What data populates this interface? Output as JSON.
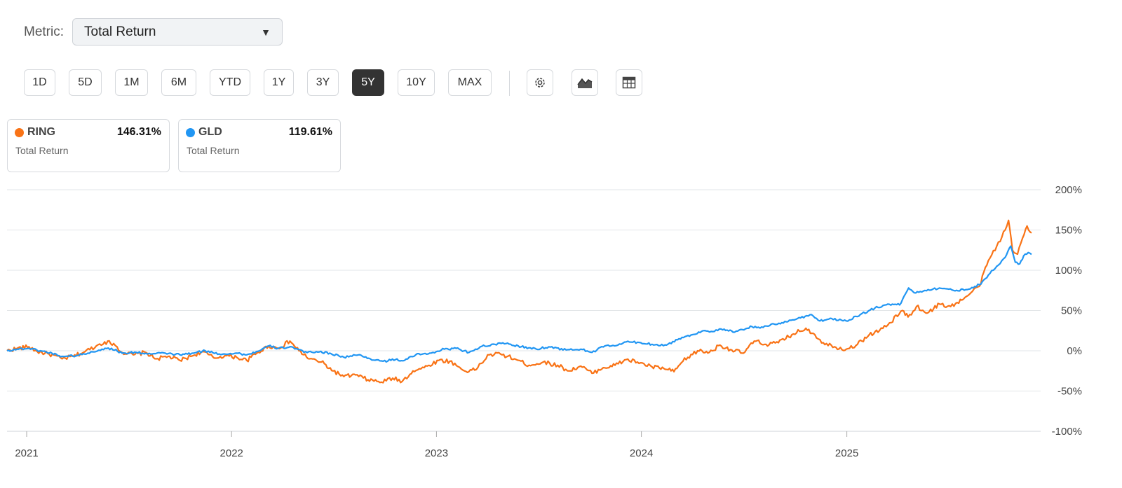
{
  "controls": {
    "metric_label": "Metric:",
    "metric_value": "Total Return",
    "ranges": [
      "1D",
      "5D",
      "1M",
      "6M",
      "YTD",
      "1Y",
      "3Y",
      "5Y",
      "10Y",
      "MAX"
    ],
    "active_range": "5Y",
    "icons": [
      "gear-icon",
      "area-chart-icon",
      "table-icon"
    ]
  },
  "legend": [
    {
      "ticker": "RING",
      "value": "146.31%",
      "metric": "Total Return",
      "color": "#f97316"
    },
    {
      "ticker": "GLD",
      "value": "119.61%",
      "metric": "Total Return",
      "color": "#2196f3"
    }
  ],
  "chart_data": {
    "type": "line",
    "title": "",
    "xlabel": "",
    "ylabel": "",
    "x_ticks": [
      "2021",
      "2022",
      "2023",
      "2024",
      "2025"
    ],
    "y_ticks": [
      "200%",
      "150%",
      "100%",
      "50%",
      "0%",
      "-50%",
      "-100%"
    ],
    "ylim": [
      -100,
      200
    ],
    "xlim": [
      "2020-11-27",
      "2025-11-26"
    ],
    "grid": true,
    "series": [
      {
        "name": "RING",
        "color": "#f97316",
        "points": [
          [
            "2020-11-27",
            0
          ],
          [
            "2020-12-15",
            3
          ],
          [
            "2021-01-05",
            5
          ],
          [
            "2021-01-20",
            -1
          ],
          [
            "2021-02-10",
            -4
          ],
          [
            "2021-03-05",
            -10
          ],
          [
            "2021-03-25",
            -7
          ],
          [
            "2021-04-15",
            -1
          ],
          [
            "2021-05-05",
            6
          ],
          [
            "2021-05-20",
            11
          ],
          [
            "2021-06-05",
            9
          ],
          [
            "2021-06-20",
            -2
          ],
          [
            "2021-07-10",
            -5
          ],
          [
            "2021-08-01",
            -2
          ],
          [
            "2021-08-20",
            -10
          ],
          [
            "2021-09-10",
            -7
          ],
          [
            "2021-10-01",
            -12
          ],
          [
            "2021-10-20",
            -7
          ],
          [
            "2021-11-10",
            -1
          ],
          [
            "2021-12-01",
            -9
          ],
          [
            "2021-12-20",
            -6
          ],
          [
            "2022-01-10",
            -8
          ],
          [
            "2022-01-28",
            -12
          ],
          [
            "2022-02-15",
            -3
          ],
          [
            "2022-03-08",
            6
          ],
          [
            "2022-03-25",
            3
          ],
          [
            "2022-04-15",
            12
          ],
          [
            "2022-05-01",
            0
          ],
          [
            "2022-05-20",
            -10
          ],
          [
            "2022-06-10",
            -14
          ],
          [
            "2022-07-01",
            -25
          ],
          [
            "2022-07-20",
            -32
          ],
          [
            "2022-08-10",
            -30
          ],
          [
            "2022-09-01",
            -36
          ],
          [
            "2022-09-25",
            -39
          ],
          [
            "2022-10-15",
            -34
          ],
          [
            "2022-11-01",
            -38
          ],
          [
            "2022-11-20",
            -25
          ],
          [
            "2022-12-10",
            -21
          ],
          [
            "2023-01-05",
            -12
          ],
          [
            "2023-01-25",
            -13
          ],
          [
            "2023-02-20",
            -25
          ],
          [
            "2023-03-10",
            -24
          ],
          [
            "2023-04-05",
            -5
          ],
          [
            "2023-04-25",
            -4
          ],
          [
            "2023-05-20",
            -10
          ],
          [
            "2023-06-15",
            -18
          ],
          [
            "2023-07-10",
            -14
          ],
          [
            "2023-08-05",
            -18
          ],
          [
            "2023-08-25",
            -25
          ],
          [
            "2023-09-15",
            -19
          ],
          [
            "2023-10-05",
            -28
          ],
          [
            "2023-10-25",
            -21
          ],
          [
            "2023-11-15",
            -18
          ],
          [
            "2023-12-05",
            -11
          ],
          [
            "2023-12-25",
            -14
          ],
          [
            "2024-01-20",
            -20
          ],
          [
            "2024-02-10",
            -22
          ],
          [
            "2024-02-28",
            -26
          ],
          [
            "2024-03-15",
            -13
          ],
          [
            "2024-04-10",
            0
          ],
          [
            "2024-05-01",
            -2
          ],
          [
            "2024-05-20",
            7
          ],
          [
            "2024-06-10",
            1
          ],
          [
            "2024-07-01",
            -3
          ],
          [
            "2024-07-20",
            12
          ],
          [
            "2024-08-10",
            8
          ],
          [
            "2024-09-01",
            10
          ],
          [
            "2024-09-25",
            20
          ],
          [
            "2024-10-20",
            28
          ],
          [
            "2024-11-05",
            20
          ],
          [
            "2024-11-20",
            10
          ],
          [
            "2024-12-10",
            5
          ],
          [
            "2024-12-31",
            2
          ],
          [
            "2025-01-20",
            8
          ],
          [
            "2025-02-10",
            20
          ],
          [
            "2025-02-28",
            25
          ],
          [
            "2025-03-15",
            32
          ],
          [
            "2025-04-10",
            50
          ],
          [
            "2025-04-20",
            42
          ],
          [
            "2025-05-05",
            55
          ],
          [
            "2025-05-25",
            47
          ],
          [
            "2025-06-15",
            58
          ],
          [
            "2025-07-05",
            55
          ],
          [
            "2025-07-25",
            63
          ],
          [
            "2025-08-10",
            72
          ],
          [
            "2025-08-25",
            80
          ],
          [
            "2025-09-10",
            112
          ],
          [
            "2025-09-25",
            130
          ],
          [
            "2025-10-10",
            150
          ],
          [
            "2025-10-16",
            162
          ],
          [
            "2025-10-23",
            125
          ],
          [
            "2025-11-01",
            120
          ],
          [
            "2025-11-10",
            140
          ],
          [
            "2025-11-18",
            155
          ],
          [
            "2025-11-26",
            146.31
          ]
        ]
      },
      {
        "name": "GLD",
        "color": "#2196f3",
        "points": [
          [
            "2020-11-27",
            0
          ],
          [
            "2020-12-15",
            2
          ],
          [
            "2021-01-05",
            3
          ],
          [
            "2021-01-25",
            0
          ],
          [
            "2021-02-15",
            -3
          ],
          [
            "2021-03-05",
            -7
          ],
          [
            "2021-03-30",
            -6
          ],
          [
            "2021-04-20",
            -3
          ],
          [
            "2021-05-15",
            2
          ],
          [
            "2021-06-01",
            3
          ],
          [
            "2021-06-20",
            -3
          ],
          [
            "2021-07-15",
            -2
          ],
          [
            "2021-08-10",
            -4
          ],
          [
            "2021-09-05",
            -3
          ],
          [
            "2021-10-01",
            -5
          ],
          [
            "2021-10-25",
            -3
          ],
          [
            "2021-11-15",
            0
          ],
          [
            "2021-12-10",
            -4
          ],
          [
            "2022-01-10",
            -3
          ],
          [
            "2022-01-28",
            -5
          ],
          [
            "2022-02-20",
            0
          ],
          [
            "2022-03-08",
            6
          ],
          [
            "2022-03-25",
            3
          ],
          [
            "2022-04-18",
            5
          ],
          [
            "2022-05-10",
            -2
          ],
          [
            "2022-06-01",
            -1
          ],
          [
            "2022-06-25",
            -3
          ],
          [
            "2022-07-20",
            -8
          ],
          [
            "2022-08-15",
            -5
          ],
          [
            "2022-09-05",
            -10
          ],
          [
            "2022-09-28",
            -13
          ],
          [
            "2022-10-20",
            -11
          ],
          [
            "2022-11-05",
            -12
          ],
          [
            "2022-11-25",
            -5
          ],
          [
            "2022-12-20",
            -3
          ],
          [
            "2023-01-15",
            2
          ],
          [
            "2023-02-05",
            3
          ],
          [
            "2023-02-28",
            -2
          ],
          [
            "2023-03-20",
            5
          ],
          [
            "2023-04-15",
            8
          ],
          [
            "2023-05-05",
            9
          ],
          [
            "2023-06-01",
            5
          ],
          [
            "2023-06-28",
            2
          ],
          [
            "2023-07-20",
            5
          ],
          [
            "2023-08-20",
            1
          ],
          [
            "2023-09-15",
            2
          ],
          [
            "2023-10-05",
            -2
          ],
          [
            "2023-10-28",
            6
          ],
          [
            "2023-11-20",
            7
          ],
          [
            "2023-12-05",
            11
          ],
          [
            "2023-12-31",
            10
          ],
          [
            "2024-01-20",
            8
          ],
          [
            "2024-02-15",
            7
          ],
          [
            "2024-03-08",
            15
          ],
          [
            "2024-04-01",
            20
          ],
          [
            "2024-04-20",
            25
          ],
          [
            "2024-05-10",
            24
          ],
          [
            "2024-05-22",
            27
          ],
          [
            "2024-06-15",
            23
          ],
          [
            "2024-07-16",
            30
          ],
          [
            "2024-08-05",
            29
          ],
          [
            "2024-08-25",
            33
          ],
          [
            "2024-09-15",
            36
          ],
          [
            "2024-10-05",
            40
          ],
          [
            "2024-10-30",
            45
          ],
          [
            "2024-11-14",
            37
          ],
          [
            "2024-12-05",
            40
          ],
          [
            "2024-12-31",
            37
          ],
          [
            "2025-01-25",
            45
          ],
          [
            "2025-02-20",
            53
          ],
          [
            "2025-03-15",
            58
          ],
          [
            "2025-04-05",
            57
          ],
          [
            "2025-04-21",
            78
          ],
          [
            "2025-05-01",
            72
          ],
          [
            "2025-05-20",
            75
          ],
          [
            "2025-06-15",
            78
          ],
          [
            "2025-07-10",
            75
          ],
          [
            "2025-08-01",
            76
          ],
          [
            "2025-08-25",
            82
          ],
          [
            "2025-09-10",
            94
          ],
          [
            "2025-09-25",
            105
          ],
          [
            "2025-10-10",
            116
          ],
          [
            "2025-10-20",
            130
          ],
          [
            "2025-10-28",
            110
          ],
          [
            "2025-11-05",
            108
          ],
          [
            "2025-11-12",
            118
          ],
          [
            "2025-11-20",
            122
          ],
          [
            "2025-11-26",
            119.61
          ]
        ]
      }
    ]
  }
}
